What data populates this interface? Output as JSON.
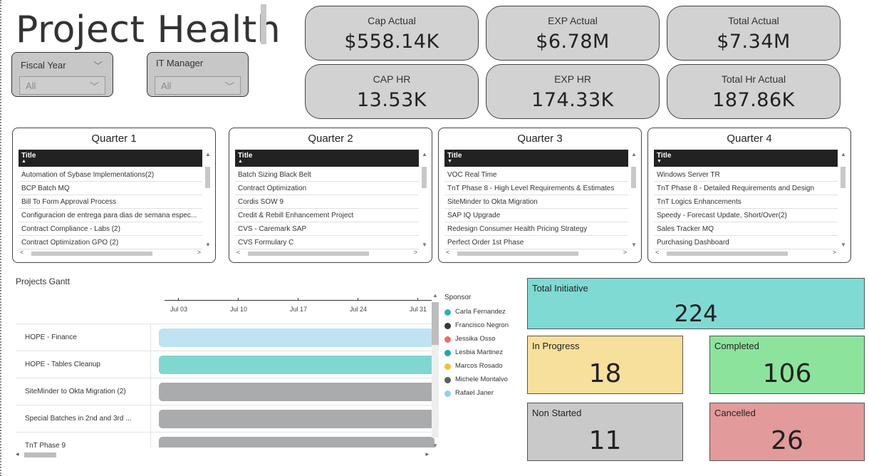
{
  "page_title": "Project Health",
  "slicers": {
    "fiscal_year": {
      "label": "Fiscal Year",
      "value": "All"
    },
    "it_manager": {
      "label": "IT Manager",
      "value": "All"
    }
  },
  "kpis": [
    {
      "label": "Cap Actual",
      "value": "$558.14K"
    },
    {
      "label": "EXP Actual",
      "value": "$6.78M"
    },
    {
      "label": "Total Actual",
      "value": "$7.34M"
    },
    {
      "label": "CAP HR",
      "value": "13.53K"
    },
    {
      "label": "EXP HR",
      "value": "174.33K"
    },
    {
      "label": "Total Hr Actual",
      "value": "187.86K"
    }
  ],
  "quarters": [
    {
      "title": "Quarter 1",
      "column": "Title",
      "rows": [
        "Automation of Sybase Implementations(2)",
        "BCP Batch MQ",
        "Bill To Form Approval Process",
        "Configuracion de entrega para dias de semana espec...",
        "Contract Compliance - Labs (2)",
        "Contract Optimization GPO (2)"
      ]
    },
    {
      "title": "Quarter 2",
      "column": "Title",
      "rows": [
        "Batch Sizing Black Belt",
        "Contract Optimization",
        "Cordis SOW 9",
        "Credit & Rebill  Enhancement Project",
        "CVS - Caremark SAP",
        "CVS Formulary C"
      ]
    },
    {
      "title": "Quarter 3",
      "column": "Title",
      "rows": [
        "VOC Real Time",
        "TnT Phase 8  - High Level Requirements & Estimates",
        "SiteMinder to Okta Migration",
        "SAP IQ Upgrade",
        "Redesign Consumer Health Pricing Strategy",
        "Perfect Order 1st Phase"
      ]
    },
    {
      "title": "Quarter 4",
      "column": "Title",
      "rows": [
        "Windows Server TR",
        "TnT Phase 8 - Detailed Requirements and Design",
        "TnT Logics Enhancements",
        "Speedy - Forecast Update, Short/Over(2)",
        "Sales Tracker MQ",
        "Purchasing Dashboard"
      ]
    }
  ],
  "gantt": {
    "title": "Projects Gantt",
    "axis_labels": [
      "Jul 03",
      "Jul 10",
      "Jul 17",
      "Jul 24",
      "Jul 31"
    ],
    "rows": [
      {
        "name": "HOPE - Finance",
        "color": "#bfe3f3"
      },
      {
        "name": "HOPE - Tables Cleanup",
        "color": "#7fd7d0"
      },
      {
        "name": "SiteMinder to Okta Migration (2)",
        "color": "#a9abad"
      },
      {
        "name": "Special Batches in 2nd and 3rd ...",
        "color": "#a9abad"
      },
      {
        "name": "TnT Phase 9",
        "color": "#a9abad"
      }
    ]
  },
  "legend": {
    "title": "Sponsor",
    "items": [
      {
        "name": "Carla Fernandez",
        "color": "#2bb5a6"
      },
      {
        "name": "Francisco Negron",
        "color": "#333b40"
      },
      {
        "name": "Jessika Osso",
        "color": "#ee6b6b"
      },
      {
        "name": "Lesbia Martinez",
        "color": "#20a89c"
      },
      {
        "name": "Marcos Rosado",
        "color": "#f2c12e"
      },
      {
        "name": "Michele Montalvo",
        "color": "#5a6166"
      },
      {
        "name": "Rafael Janer",
        "color": "#93cfe8"
      }
    ]
  },
  "stats": {
    "total_initiative": {
      "label": "Total Initiative",
      "value": "224",
      "color": "#7fdad4"
    },
    "in_progress": {
      "label": "In Progress",
      "value": "18",
      "color": "#f7e09c"
    },
    "completed": {
      "label": "Completed",
      "value": "106",
      "color": "#8ce49c"
    },
    "non_started": {
      "label": "Non Started",
      "value": "11",
      "color": "#c9c9c9"
    },
    "cancelled": {
      "label": "Cancelled",
      "value": "26",
      "color": "#e29a9a"
    }
  }
}
